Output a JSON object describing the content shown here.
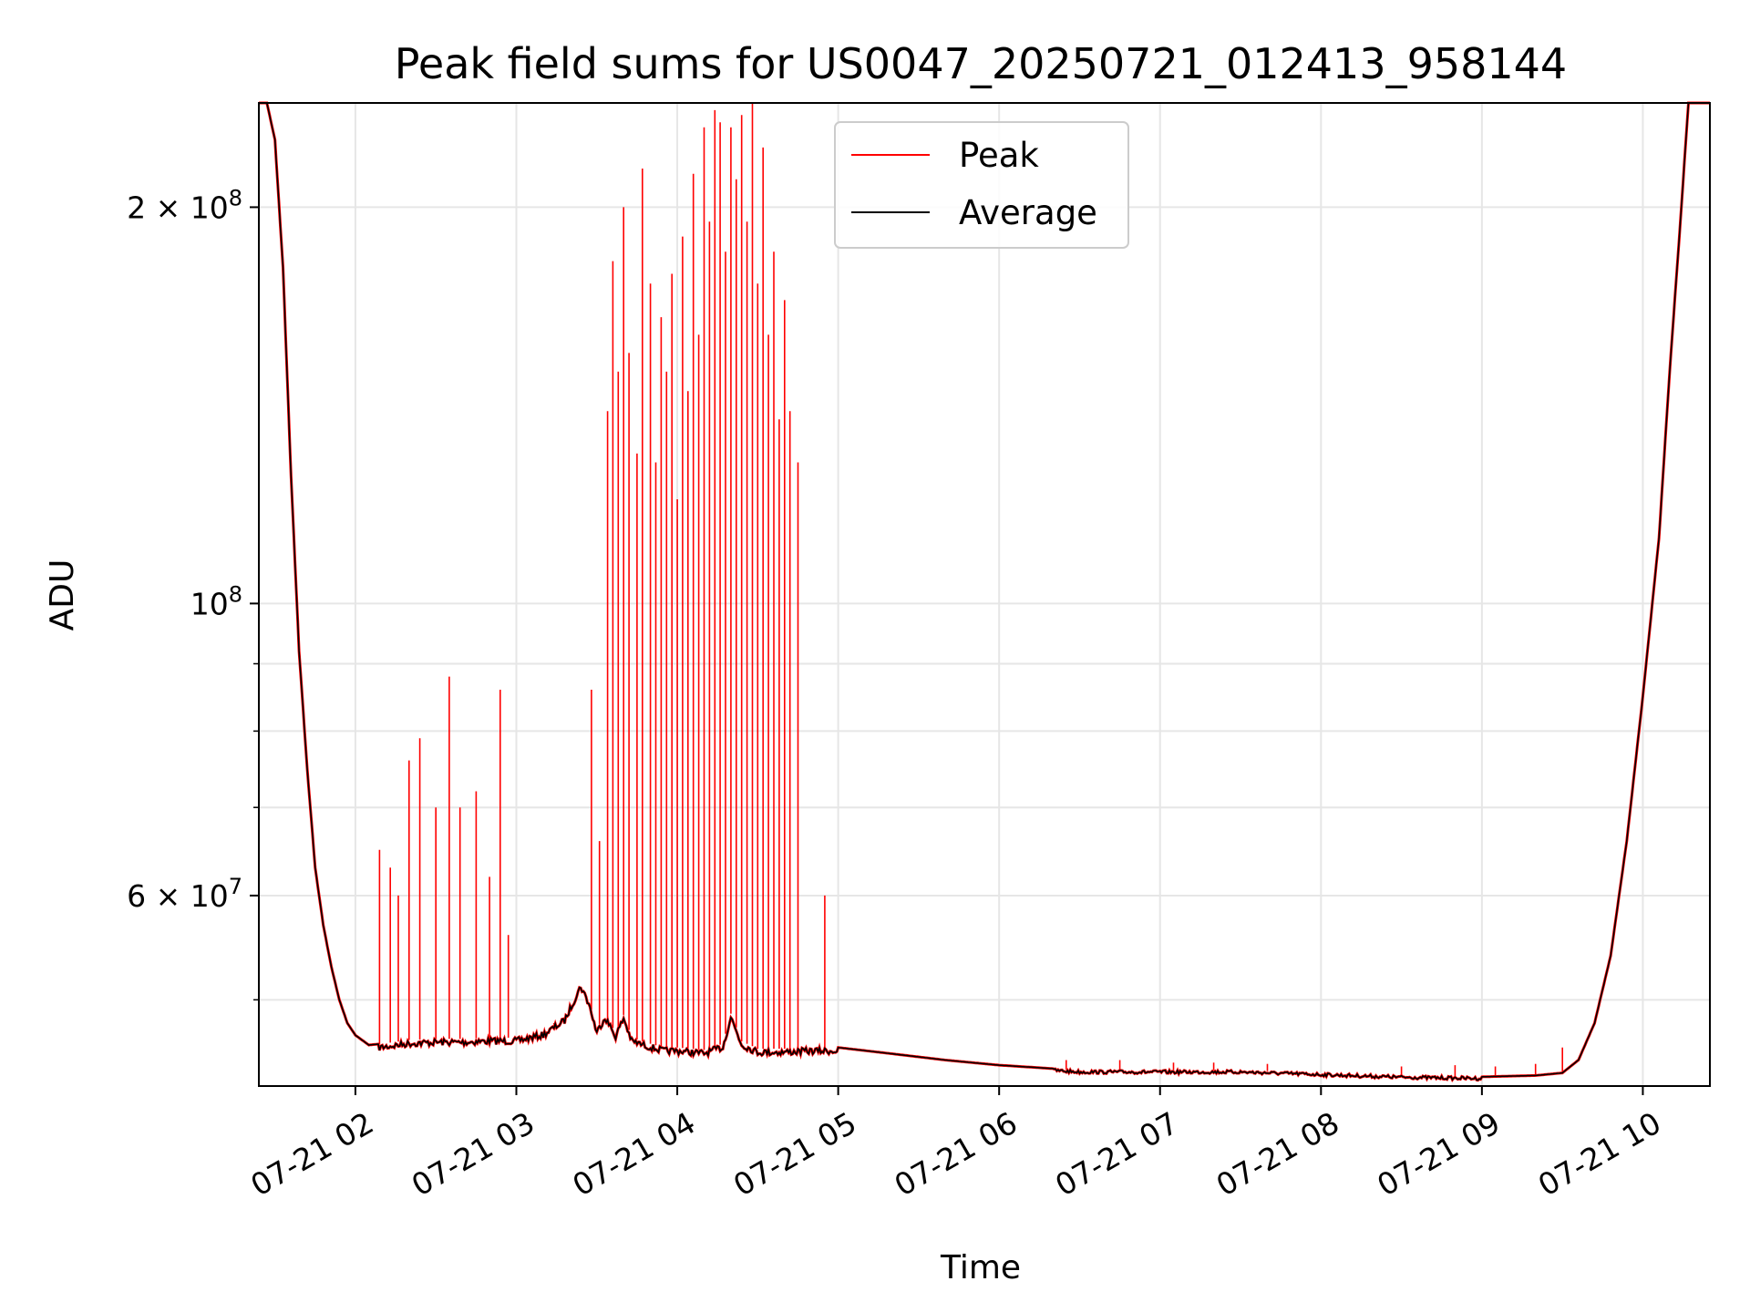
{
  "chart_data": {
    "type": "line",
    "title": "Peak field sums for US0047_20250721_012413_958144",
    "xlabel": "Time",
    "ylabel": "ADU",
    "y_scale": "log",
    "grid": true,
    "legend_position": "top-center",
    "xlim": [
      "2025-07-21 01:24",
      "2025-07-21 10:25"
    ],
    "ylim": [
      43000000,
      240000000
    ],
    "x_ticks": [
      {
        "value": "2025-07-21 02:00",
        "label": "07-21 02"
      },
      {
        "value": "2025-07-21 03:00",
        "label": "07-21 03"
      },
      {
        "value": "2025-07-21 04:00",
        "label": "07-21 04"
      },
      {
        "value": "2025-07-21 05:00",
        "label": "07-21 05"
      },
      {
        "value": "2025-07-21 06:00",
        "label": "07-21 06"
      },
      {
        "value": "2025-07-21 07:00",
        "label": "07-21 07"
      },
      {
        "value": "2025-07-21 08:00",
        "label": "07-21 08"
      },
      {
        "value": "2025-07-21 09:00",
        "label": "07-21 09"
      },
      {
        "value": "2025-07-21 10:00",
        "label": "07-21 10"
      }
    ],
    "y_ticks": [
      {
        "value": 200000000,
        "base": "2 × 10",
        "exp": "8"
      },
      {
        "value": 100000000,
        "base": "10",
        "exp": "8"
      },
      {
        "value": 60000000,
        "base": "6 × 10",
        "exp": "7"
      }
    ],
    "y_minor_ticks": [
      50000000,
      70000000,
      80000000,
      90000000
    ],
    "colors": {
      "peak": "#ff0000",
      "average": "#000000",
      "grid": "#e6e6e6"
    },
    "series": [
      {
        "name": "Average",
        "color": "#000000",
        "x": [
          "2025-07-21 01:24",
          "2025-07-21 01:27",
          "2025-07-21 01:30",
          "2025-07-21 01:33",
          "2025-07-21 01:36",
          "2025-07-21 01:39",
          "2025-07-21 01:42",
          "2025-07-21 01:45",
          "2025-07-21 01:48",
          "2025-07-21 01:51",
          "2025-07-21 01:54",
          "2025-07-21 01:57",
          "2025-07-21 02:00",
          "2025-07-21 02:05",
          "2025-07-21 02:10",
          "2025-07-21 02:20",
          "2025-07-21 02:30",
          "2025-07-21 02:40",
          "2025-07-21 02:50",
          "2025-07-21 03:00",
          "2025-07-21 03:10",
          "2025-07-21 03:18",
          "2025-07-21 03:24",
          "2025-07-21 03:27",
          "2025-07-21 03:30",
          "2025-07-21 03:33",
          "2025-07-21 03:37",
          "2025-07-21 03:40",
          "2025-07-21 03:43",
          "2025-07-21 03:47",
          "2025-07-21 03:50",
          "2025-07-21 03:55",
          "2025-07-21 04:00",
          "2025-07-21 04:10",
          "2025-07-21 04:17",
          "2025-07-21 04:20",
          "2025-07-21 04:24",
          "2025-07-21 04:30",
          "2025-07-21 04:40",
          "2025-07-21 04:50",
          "2025-07-21 05:00",
          "2025-07-21 05:20",
          "2025-07-21 05:40",
          "2025-07-21 06:00",
          "2025-07-21 06:30",
          "2025-07-21 07:00",
          "2025-07-21 07:30",
          "2025-07-21 08:00",
          "2025-07-21 08:30",
          "2025-07-21 09:00",
          "2025-07-21 09:20",
          "2025-07-21 09:30",
          "2025-07-21 09:36",
          "2025-07-21 09:42",
          "2025-07-21 09:48",
          "2025-07-21 09:54",
          "2025-07-21 10:00",
          "2025-07-21 10:06",
          "2025-07-21 10:10",
          "2025-07-21 10:14",
          "2025-07-21 10:17",
          "2025-07-21 10:20",
          "2025-07-21 10:25"
        ],
        "values": [
          240000000,
          240000000,
          225000000,
          180000000,
          125000000,
          92000000,
          75000000,
          63000000,
          57000000,
          53000000,
          50000000,
          48000000,
          47000000,
          46200000,
          46300000,
          46600000,
          46700000,
          46700000,
          46800000,
          46800000,
          47300000,
          48500000,
          51500000,
          50000000,
          47500000,
          48800000,
          47200000,
          48700000,
          46800000,
          46500000,
          46300000,
          46000000,
          46000000,
          45800000,
          46300000,
          48800000,
          46500000,
          45900000,
          45900000,
          46000000,
          46000000,
          45500000,
          45000000,
          44600000,
          44200000,
          44200000,
          44200000,
          44000000,
          43800000,
          43700000,
          43800000,
          44000000,
          45000000,
          48000000,
          54000000,
          66000000,
          85000000,
          112000000,
          150000000,
          195000000,
          240000000,
          240000000,
          240000000
        ]
      },
      {
        "name": "Peak",
        "color": "#ff0000",
        "spikes": [
          {
            "x": "2025-07-21 02:09",
            "y": 65000000
          },
          {
            "x": "2025-07-21 02:13",
            "y": 63000000
          },
          {
            "x": "2025-07-21 02:16",
            "y": 60000000
          },
          {
            "x": "2025-07-21 02:20",
            "y": 76000000
          },
          {
            "x": "2025-07-21 02:24",
            "y": 79000000
          },
          {
            "x": "2025-07-21 02:30",
            "y": 70000000
          },
          {
            "x": "2025-07-21 02:35",
            "y": 88000000
          },
          {
            "x": "2025-07-21 02:39",
            "y": 70000000
          },
          {
            "x": "2025-07-21 02:45",
            "y": 72000000
          },
          {
            "x": "2025-07-21 02:50",
            "y": 62000000
          },
          {
            "x": "2025-07-21 02:54",
            "y": 86000000
          },
          {
            "x": "2025-07-21 02:57",
            "y": 56000000
          },
          {
            "x": "2025-07-21 03:14",
            "y": 48000000
          },
          {
            "x": "2025-07-21 03:28",
            "y": 86000000
          },
          {
            "x": "2025-07-21 03:31",
            "y": 66000000
          },
          {
            "x": "2025-07-21 03:34",
            "y": 140000000
          },
          {
            "x": "2025-07-21 03:36",
            "y": 182000000
          },
          {
            "x": "2025-07-21 03:38",
            "y": 150000000
          },
          {
            "x": "2025-07-21 03:40",
            "y": 200000000
          },
          {
            "x": "2025-07-21 03:42",
            "y": 155000000
          },
          {
            "x": "2025-07-21 03:45",
            "y": 130000000
          },
          {
            "x": "2025-07-21 03:47",
            "y": 214000000
          },
          {
            "x": "2025-07-21 03:50",
            "y": 175000000
          },
          {
            "x": "2025-07-21 03:52",
            "y": 128000000
          },
          {
            "x": "2025-07-21 03:54",
            "y": 165000000
          },
          {
            "x": "2025-07-21 03:56",
            "y": 150000000
          },
          {
            "x": "2025-07-21 03:58",
            "y": 178000000
          },
          {
            "x": "2025-07-21 04:00",
            "y": 120000000
          },
          {
            "x": "2025-07-21 04:02",
            "y": 190000000
          },
          {
            "x": "2025-07-21 04:04",
            "y": 145000000
          },
          {
            "x": "2025-07-21 04:06",
            "y": 212000000
          },
          {
            "x": "2025-07-21 04:08",
            "y": 160000000
          },
          {
            "x": "2025-07-21 04:10",
            "y": 230000000
          },
          {
            "x": "2025-07-21 04:12",
            "y": 195000000
          },
          {
            "x": "2025-07-21 04:14",
            "y": 237000000
          },
          {
            "x": "2025-07-21 04:16",
            "y": 232000000
          },
          {
            "x": "2025-07-21 04:18",
            "y": 185000000
          },
          {
            "x": "2025-07-21 04:20",
            "y": 230000000
          },
          {
            "x": "2025-07-21 04:22",
            "y": 210000000
          },
          {
            "x": "2025-07-21 04:24",
            "y": 235000000
          },
          {
            "x": "2025-07-21 04:26",
            "y": 195000000
          },
          {
            "x": "2025-07-21 04:28",
            "y": 240000000
          },
          {
            "x": "2025-07-21 04:30",
            "y": 175000000
          },
          {
            "x": "2025-07-21 04:32",
            "y": 222000000
          },
          {
            "x": "2025-07-21 04:34",
            "y": 160000000
          },
          {
            "x": "2025-07-21 04:36",
            "y": 185000000
          },
          {
            "x": "2025-07-21 04:38",
            "y": 138000000
          },
          {
            "x": "2025-07-21 04:40",
            "y": 170000000
          },
          {
            "x": "2025-07-21 04:42",
            "y": 140000000
          },
          {
            "x": "2025-07-21 04:45",
            "y": 128000000
          },
          {
            "x": "2025-07-21 04:55",
            "y": 60000000
          },
          {
            "x": "2025-07-21 06:25",
            "y": 45000000
          },
          {
            "x": "2025-07-21 06:45",
            "y": 45000000
          },
          {
            "x": "2025-07-21 07:05",
            "y": 44800000
          },
          {
            "x": "2025-07-21 07:20",
            "y": 44800000
          },
          {
            "x": "2025-07-21 07:40",
            "y": 44700000
          },
          {
            "x": "2025-07-21 08:30",
            "y": 44500000
          },
          {
            "x": "2025-07-21 08:50",
            "y": 44600000
          },
          {
            "x": "2025-07-21 09:05",
            "y": 44500000
          },
          {
            "x": "2025-07-21 09:20",
            "y": 44700000
          },
          {
            "x": "2025-07-21 09:30",
            "y": 46000000
          }
        ]
      }
    ]
  }
}
